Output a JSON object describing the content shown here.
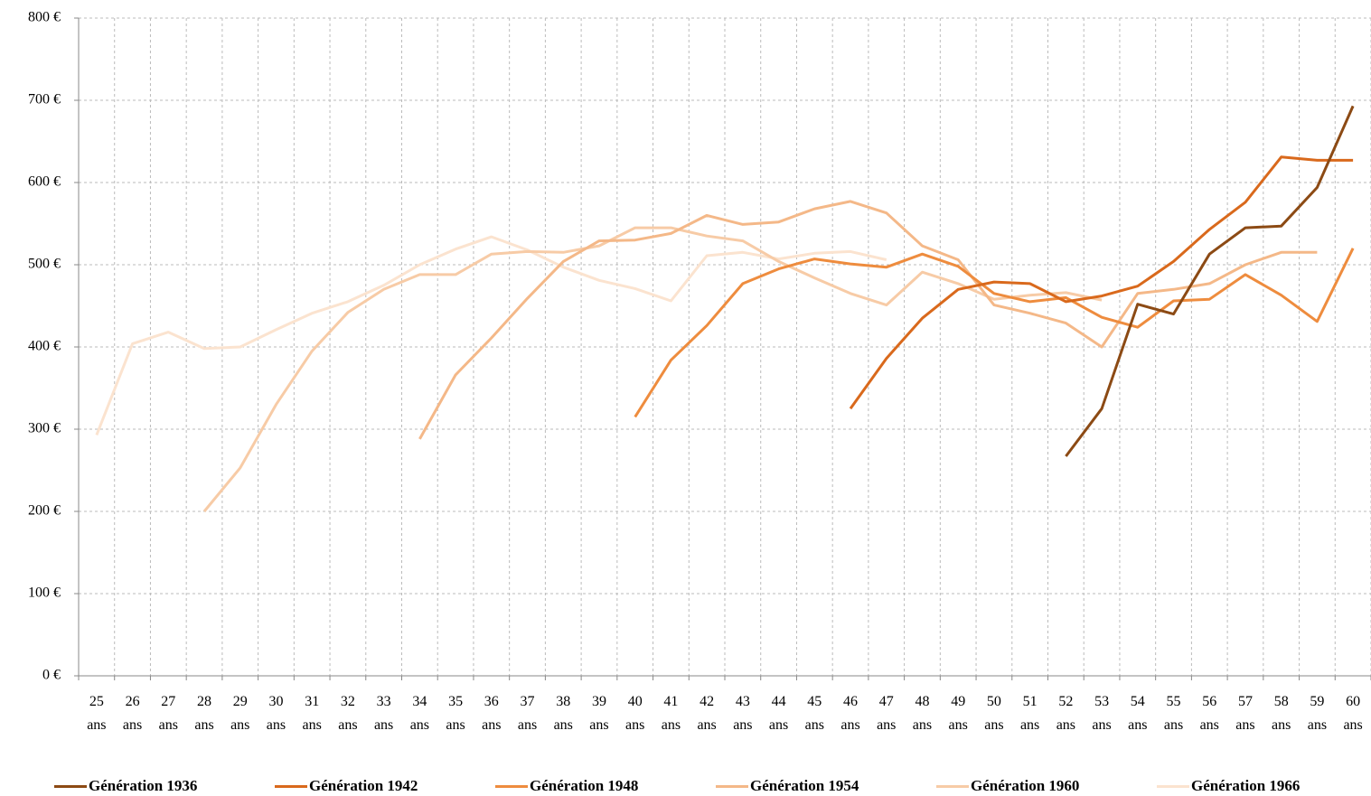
{
  "chart_data": {
    "type": "line",
    "categories": [
      "25 ans",
      "26 ans",
      "27 ans",
      "28 ans",
      "29 ans",
      "30 ans",
      "31 ans",
      "32 ans",
      "33 ans",
      "34 ans",
      "35 ans",
      "36 ans",
      "37 ans",
      "38 ans",
      "39 ans",
      "40 ans",
      "41 ans",
      "42 ans",
      "43 ans",
      "44 ans",
      "45 ans",
      "46 ans",
      "47 ans",
      "48 ans",
      "49 ans",
      "50 ans",
      "51 ans",
      "52 ans",
      "53 ans",
      "54 ans",
      "55 ans",
      "56 ans",
      "57 ans",
      "58 ans",
      "59 ans",
      "60 ans"
    ],
    "ylim": [
      0,
      800
    ],
    "yticks": [
      {
        "value": 0,
        "label": "0 €"
      },
      {
        "value": 100,
        "label": "100 €"
      },
      {
        "value": 200,
        "label": "200 €"
      },
      {
        "value": 300,
        "label": "300 €"
      },
      {
        "value": 400,
        "label": "400 €"
      },
      {
        "value": 500,
        "label": "500 €"
      },
      {
        "value": 600,
        "label": "600 €"
      },
      {
        "value": 700,
        "label": "700 €"
      },
      {
        "value": 800,
        "label": "800 €"
      }
    ],
    "grid": true,
    "legend": "bottom",
    "series": [
      {
        "name": "Génération 1936",
        "color": "#8c4a14",
        "values": [
          null,
          null,
          null,
          null,
          null,
          null,
          null,
          null,
          null,
          null,
          null,
          null,
          null,
          null,
          null,
          null,
          null,
          null,
          null,
          null,
          null,
          null,
          null,
          null,
          null,
          null,
          null,
          267,
          325,
          452,
          440,
          513,
          545,
          547,
          594,
          693
        ]
      },
      {
        "name": "Génération 1942",
        "color": "#d9691c",
        "values": [
          null,
          null,
          null,
          null,
          null,
          null,
          null,
          null,
          null,
          null,
          null,
          null,
          null,
          null,
          null,
          null,
          null,
          null,
          null,
          null,
          null,
          325,
          386,
          435,
          470,
          479,
          477,
          455,
          462,
          474,
          504,
          543,
          576,
          631,
          627,
          627
        ]
      },
      {
        "name": "Génération 1948",
        "color": "#ee8c3e",
        "values": [
          null,
          null,
          null,
          null,
          null,
          null,
          null,
          null,
          null,
          null,
          null,
          null,
          null,
          null,
          null,
          315,
          384,
          426,
          477,
          495,
          507,
          501,
          497,
          513,
          498,
          465,
          455,
          460,
          436,
          424,
          456,
          458,
          488,
          463,
          431,
          520
        ]
      },
      {
        "name": "Génération 1954",
        "color": "#f4b888",
        "values": [
          null,
          null,
          null,
          null,
          null,
          null,
          null,
          null,
          null,
          288,
          366,
          411,
          459,
          504,
          529,
          530,
          538,
          560,
          549,
          552,
          568,
          577,
          563,
          523,
          506,
          451,
          441,
          429,
          400,
          465,
          470,
          477,
          500,
          515,
          515,
          null
        ]
      },
      {
        "name": "Génération 1960",
        "color": "#f7cba6",
        "values": [
          null,
          null,
          null,
          200,
          253,
          330,
          395,
          442,
          470,
          488,
          488,
          513,
          516,
          515,
          523,
          545,
          545,
          535,
          529,
          504,
          484,
          465,
          451,
          491,
          477,
          458,
          463,
          466,
          457,
          null,
          null,
          null,
          null,
          null,
          null,
          null
        ]
      },
      {
        "name": "Génération 1966",
        "color": "#fbe3cf",
        "values": [
          293,
          404,
          418,
          398,
          400,
          421,
          441,
          455,
          475,
          500,
          519,
          534,
          518,
          497,
          481,
          471,
          456,
          511,
          515,
          507,
          514,
          516,
          506,
          null,
          null,
          null,
          null,
          null,
          null,
          null,
          null,
          null,
          null,
          null,
          null,
          null
        ]
      }
    ]
  }
}
